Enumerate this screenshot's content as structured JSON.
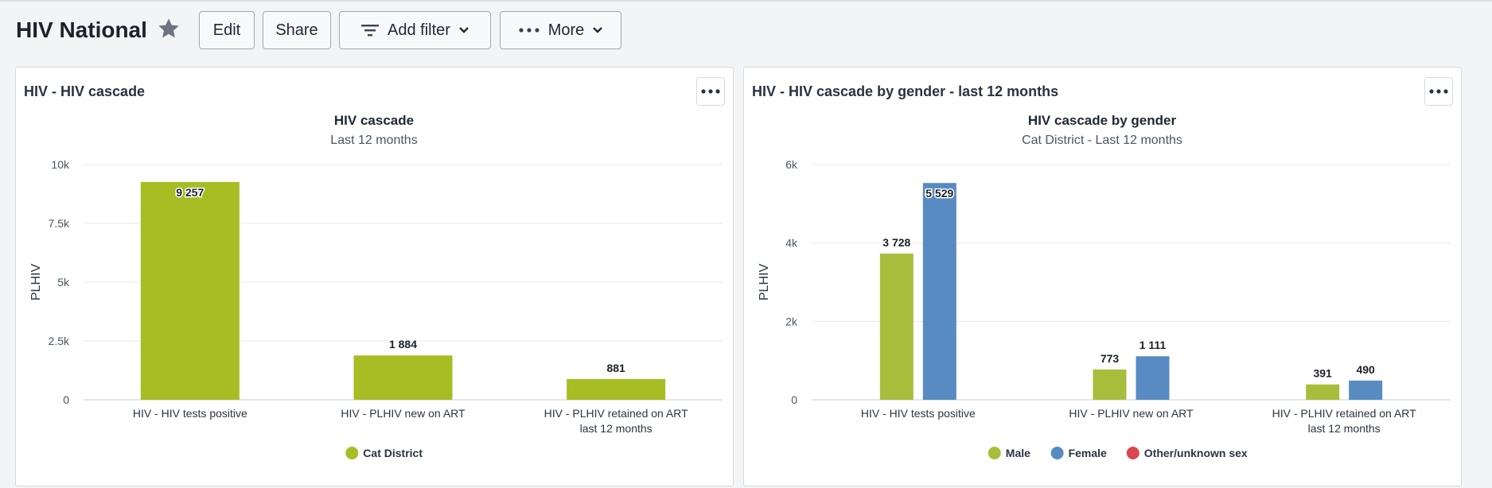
{
  "header": {
    "title": "HIV National",
    "edit_label": "Edit",
    "share_label": "Share",
    "add_filter_label": "Add filter",
    "more_label": "More"
  },
  "panels": [
    {
      "title": "HIV - HIV cascade",
      "chart_title": "HIV cascade",
      "chart_subtitle": "Last 12 months"
    },
    {
      "title": "HIV - HIV cascade by gender - last 12 months",
      "chart_title": "HIV cascade by gender",
      "chart_subtitle": "Cat District - Last 12 months"
    }
  ],
  "colors": {
    "accent_green": "#a6bd23",
    "male": "#a8bd3b",
    "female": "#588bc2",
    "other": "#d9474f",
    "star": "#6b7480"
  },
  "chart_data": [
    {
      "type": "bar",
      "title": "HIV cascade",
      "subtitle": "Last 12 months",
      "xlabel": "",
      "ylabel": "PLHIV",
      "ylim": [
        0,
        10000
      ],
      "yticks": [
        0,
        2500,
        5000,
        7500,
        10000
      ],
      "ytick_labels": [
        "0",
        "2.5k",
        "5k",
        "7.5k",
        "10k"
      ],
      "categories": [
        "HIV - HIV tests positive",
        "HIV - PLHIV new on ART",
        "HIV - PLHIV retained on ART last 12 months"
      ],
      "series": [
        {
          "name": "Cat District",
          "values": [
            9257,
            1884,
            881
          ],
          "labels": [
            "9 257",
            "1 884",
            "881"
          ]
        }
      ],
      "legend": "bottom",
      "grid": true
    },
    {
      "type": "bar",
      "title": "HIV cascade by gender",
      "subtitle": "Cat District - Last 12 months",
      "xlabel": "",
      "ylabel": "PLHIV",
      "ylim": [
        0,
        6000
      ],
      "yticks": [
        0,
        2000,
        4000,
        6000
      ],
      "ytick_labels": [
        "0",
        "2k",
        "4k",
        "6k"
      ],
      "categories": [
        "HIV - HIV tests positive",
        "HIV - PLHIV new on ART",
        "HIV - PLHIV retained on ART last 12 months"
      ],
      "series": [
        {
          "name": "Male",
          "values": [
            3728,
            773,
            391
          ],
          "labels": [
            "3 728",
            "773",
            "391"
          ]
        },
        {
          "name": "Female",
          "values": [
            5529,
            1111,
            490
          ],
          "labels": [
            "5 529",
            "1 111",
            "490"
          ]
        },
        {
          "name": "Other/unknown sex",
          "values": [
            0,
            0,
            0
          ],
          "labels": [
            "",
            "",
            ""
          ]
        }
      ],
      "legend": "bottom",
      "grid": true
    }
  ]
}
